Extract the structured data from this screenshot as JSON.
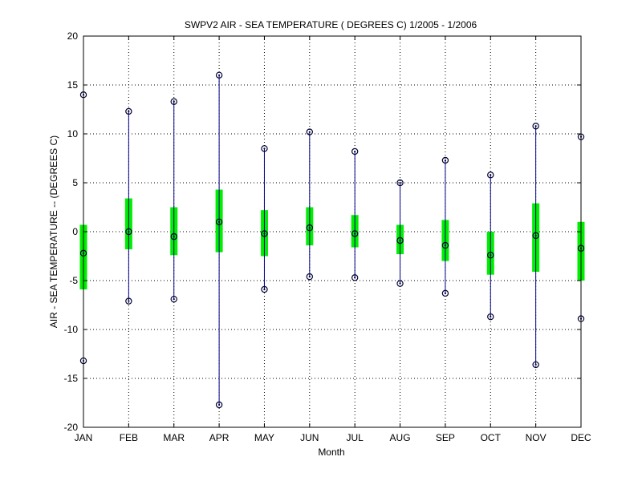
{
  "chart_data": {
    "type": "box",
    "title": "SWPV2  AIR - SEA TEMPERATURE ( DEGREES C) 1/2005 - 1/2006",
    "xlabel": "Month",
    "ylabel": "AIR - SEA TEMPERATURE -- (DEGREES C)",
    "ylim": [
      -20,
      20
    ],
    "yticks": [
      -20,
      -15,
      -10,
      -5,
      0,
      5,
      10,
      15,
      20
    ],
    "grid": true,
    "categories": [
      "JAN",
      "FEB",
      "MAR",
      "APR",
      "MAY",
      "JUN",
      "JUL",
      "AUG",
      "SEP",
      "OCT",
      "NOV",
      "DEC"
    ],
    "max": [
      14.0,
      12.3,
      13.3,
      16.0,
      8.5,
      10.2,
      8.2,
      5.0,
      7.3,
      5.8,
      10.8,
      9.7
    ],
    "min": [
      -13.2,
      -7.1,
      -6.9,
      -17.7,
      -5.9,
      -4.6,
      -4.7,
      -5.3,
      -6.3,
      -8.7,
      -13.6,
      -8.9
    ],
    "mean": [
      -2.2,
      0.0,
      -0.5,
      1.0,
      -0.2,
      0.4,
      -0.2,
      -0.9,
      -1.4,
      -2.4,
      -0.4,
      -1.7
    ],
    "box_low": [
      -5.9,
      -1.8,
      -2.4,
      -2.1,
      -2.5,
      -1.4,
      -1.6,
      -2.3,
      -3.0,
      -4.4,
      -4.1,
      -5.0
    ],
    "box_high": [
      0.7,
      3.4,
      2.5,
      4.3,
      2.2,
      2.5,
      1.7,
      0.7,
      1.2,
      0.0,
      2.9,
      1.0
    ],
    "colors": {
      "whisker": "#00008b",
      "box": "#00ee00",
      "marker": "#000033",
      "grid": "#000000"
    }
  }
}
